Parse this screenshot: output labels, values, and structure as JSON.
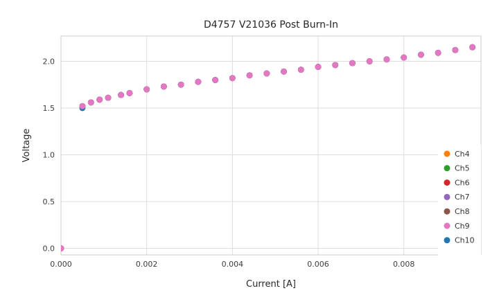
{
  "chart_data": {
    "type": "scatter",
    "title": "D4757 V21036 Post Burn-In",
    "xlabel": "Current [A]",
    "ylabel": "Voltage",
    "xlim": [
      0.0,
      0.0098
    ],
    "ylim": [
      -0.07,
      2.27
    ],
    "xticks": [
      0.0,
      0.002,
      0.004,
      0.006,
      0.008
    ],
    "xtick_labels": [
      "0.000",
      "0.002",
      "0.004",
      "0.006",
      "0.008"
    ],
    "yticks": [
      0.0,
      0.5,
      1.0,
      1.5,
      2.0
    ],
    "ytick_labels": [
      "0.0",
      "0.5",
      "1.0",
      "1.5",
      "2.0"
    ],
    "grid": true,
    "legend_position": "lower right",
    "x": [
      0.0,
      0.0005,
      0.0007,
      0.0009,
      0.0011,
      0.0014,
      0.0016,
      0.002,
      0.0024,
      0.0028,
      0.0032,
      0.0036,
      0.004,
      0.0044,
      0.0048,
      0.0052,
      0.0056,
      0.006,
      0.0064,
      0.0068,
      0.0072,
      0.0076,
      0.008,
      0.0084,
      0.0088,
      0.0092,
      0.0096
    ],
    "series": [
      {
        "name": "Ch4",
        "color": "#ff7f0e",
        "values": [
          0.0,
          1.52,
          1.56,
          1.59,
          1.61,
          1.64,
          1.66,
          1.7,
          1.73,
          1.75,
          1.78,
          1.8,
          1.82,
          1.85,
          1.87,
          1.89,
          1.91,
          1.94,
          1.96,
          1.98,
          2.0,
          2.02,
          2.04,
          2.07,
          2.09,
          2.12,
          2.15
        ]
      },
      {
        "name": "Ch5",
        "color": "#2ca02c",
        "values": [
          0.0,
          1.52,
          1.56,
          1.59,
          1.61,
          1.64,
          1.66,
          1.7,
          1.73,
          1.75,
          1.78,
          1.8,
          1.82,
          1.85,
          1.87,
          1.89,
          1.91,
          1.94,
          1.96,
          1.98,
          2.0,
          2.02,
          2.04,
          2.07,
          2.09,
          2.12,
          2.15
        ]
      },
      {
        "name": "Ch6",
        "color": "#d62728",
        "values": [
          0.0,
          1.52,
          1.56,
          1.59,
          1.61,
          1.64,
          1.66,
          1.7,
          1.73,
          1.75,
          1.78,
          1.8,
          1.82,
          1.85,
          1.87,
          1.89,
          1.91,
          1.94,
          1.96,
          1.98,
          2.0,
          2.02,
          2.04,
          2.07,
          2.09,
          2.12,
          2.15
        ]
      },
      {
        "name": "Ch7",
        "color": "#9467bd",
        "values": [
          0.0,
          1.52,
          1.56,
          1.59,
          1.61,
          1.64,
          1.66,
          1.7,
          1.73,
          1.75,
          1.78,
          1.8,
          1.82,
          1.85,
          1.87,
          1.89,
          1.91,
          1.94,
          1.96,
          1.98,
          2.0,
          2.02,
          2.04,
          2.07,
          2.09,
          2.12,
          2.15
        ]
      },
      {
        "name": "Ch8",
        "color": "#8c564b",
        "values": [
          0.0,
          1.52,
          1.56,
          1.59,
          1.61,
          1.64,
          1.66,
          1.7,
          1.73,
          1.75,
          1.78,
          1.8,
          1.82,
          1.85,
          1.87,
          1.89,
          1.91,
          1.94,
          1.96,
          1.98,
          2.0,
          2.02,
          2.04,
          2.07,
          2.09,
          2.12,
          2.15
        ]
      },
      {
        "name": "Ch9",
        "color": "#e377c2",
        "values": [
          0.0,
          1.52,
          1.56,
          1.59,
          1.61,
          1.64,
          1.66,
          1.7,
          1.73,
          1.75,
          1.78,
          1.8,
          1.82,
          1.85,
          1.87,
          1.89,
          1.91,
          1.94,
          1.96,
          1.98,
          2.0,
          2.02,
          2.04,
          2.07,
          2.09,
          2.12,
          2.15
        ]
      },
      {
        "name": "Ch10",
        "color": "#1f77b4",
        "values": [
          0.0,
          1.5,
          1.56,
          1.59,
          1.61,
          1.64,
          1.66,
          1.7,
          1.73,
          1.75,
          1.78,
          1.8,
          1.82,
          1.85,
          1.87,
          1.89,
          1.91,
          1.94,
          1.96,
          1.98,
          2.0,
          2.02,
          2.04,
          2.07,
          2.09,
          2.12,
          2.15
        ]
      }
    ],
    "plot_order": [
      "Ch4",
      "Ch5",
      "Ch6",
      "Ch7",
      "Ch8",
      "Ch10",
      "Ch9"
    ],
    "marker_radius": 4.4,
    "colors": {
      "grid": "#dddddd",
      "border": "#cccccc",
      "text": "#262626",
      "background": "#ffffff"
    }
  }
}
